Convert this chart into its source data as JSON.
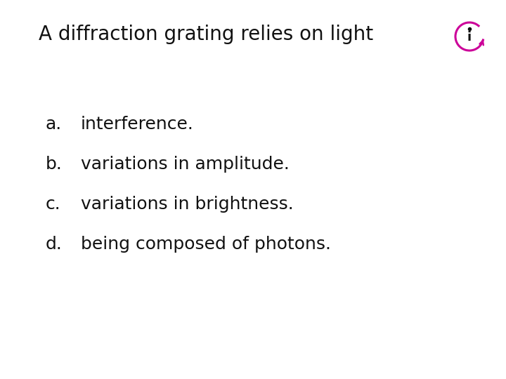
{
  "title": "A diffraction grating relies on light",
  "title_fontsize": 20,
  "title_color": "#111111",
  "bg_color": "#ffffff",
  "options": [
    {
      "label": "a.",
      "text": "interference."
    },
    {
      "label": "b.",
      "text": "variations in amplitude."
    },
    {
      "label": "c.",
      "text": "variations in brightness."
    },
    {
      "label": "d.",
      "text": "being composed of photons."
    }
  ],
  "option_fontsize": 18,
  "option_color": "#111111",
  "icon_ring_color": "#cc0099",
  "icon_dot_color": "#111111"
}
